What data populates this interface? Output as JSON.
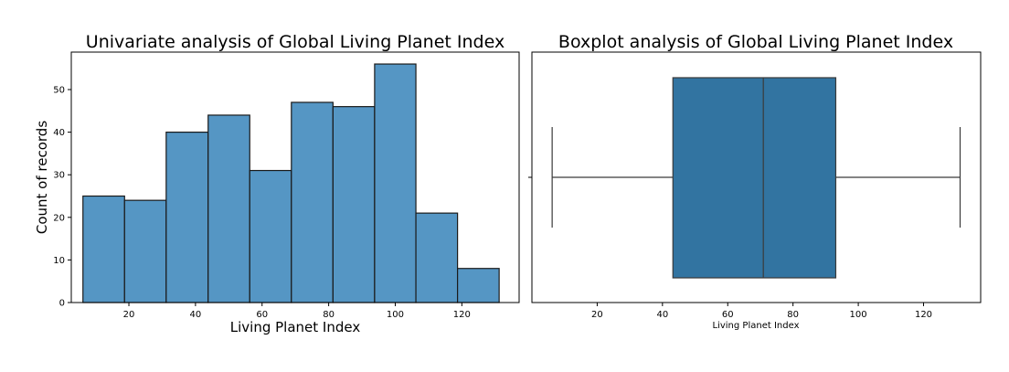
{
  "chart_data": [
    {
      "type": "bar",
      "title": "Univariate analysis of Global Living Planet Index",
      "xlabel": "Living Planet Index",
      "ylabel": "Count of records",
      "xlim": [
        2.7,
        137.2
      ],
      "ylim": [
        0,
        58.8
      ],
      "xticks": [
        20,
        40,
        60,
        80,
        100,
        120
      ],
      "yticks": [
        0,
        10,
        20,
        30,
        40,
        50
      ],
      "bins": [
        {
          "x0": 6.2,
          "x1": 18.7,
          "count": 25
        },
        {
          "x0": 18.7,
          "x1": 31.2,
          "count": 24
        },
        {
          "x0": 31.2,
          "x1": 43.8,
          "count": 40
        },
        {
          "x0": 43.8,
          "x1": 56.3,
          "count": 44
        },
        {
          "x0": 56.3,
          "x1": 68.8,
          "count": 31
        },
        {
          "x0": 68.8,
          "x1": 81.3,
          "count": 47
        },
        {
          "x0": 81.3,
          "x1": 93.8,
          "count": 46
        },
        {
          "x0": 93.8,
          "x1": 106.2,
          "count": 56
        },
        {
          "x0": 106.2,
          "x1": 118.7,
          "count": 21
        },
        {
          "x0": 118.7,
          "x1": 131.2,
          "count": 8
        }
      ],
      "bar_color": "#5596c4",
      "edge_color": "#1a1a1a"
    },
    {
      "type": "box",
      "title": "Boxplot analysis of Global Living Planet Index",
      "xlabel": "Living Planet Index",
      "xlim": [
        0,
        137.5
      ],
      "xticks": [
        20,
        40,
        60,
        80,
        100,
        120
      ],
      "stats": {
        "min": 6.2,
        "q1": 43.2,
        "median": 70.9,
        "q3": 93.1,
        "max": 131.2
      },
      "box_color": "#3274a1",
      "line_color": "#3a3a3a"
    }
  ]
}
